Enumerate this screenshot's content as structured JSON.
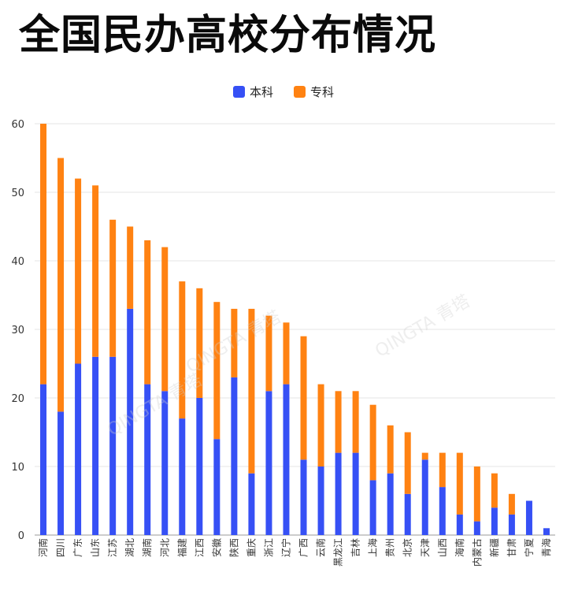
{
  "title": "全国民办高校分布情况",
  "watermark": "QINGTA 青塔",
  "colors": {
    "benke": "#3650f5",
    "zhuanke": "#ff8212",
    "grid": "#e6e6e6",
    "axis": "#999999"
  },
  "chart_data": {
    "type": "bar",
    "stacked": true,
    "title": "全国民办高校分布情况",
    "categories": [
      "河南",
      "四川",
      "广东",
      "山东",
      "江苏",
      "湖北",
      "湖南",
      "河北",
      "福建",
      "江西",
      "安徽",
      "陕西",
      "重庆",
      "浙江",
      "辽宁",
      "广西",
      "云南",
      "黑龙江",
      "吉林",
      "上海",
      "贵州",
      "北京",
      "天津",
      "山西",
      "海南",
      "内蒙古",
      "新疆",
      "甘肃",
      "宁夏",
      "青海"
    ],
    "series": [
      {
        "name": "本科",
        "color": "#3650f5",
        "values": [
          22,
          18,
          25,
          26,
          26,
          33,
          22,
          21,
          17,
          20,
          14,
          23,
          9,
          21,
          22,
          11,
          10,
          12,
          12,
          8,
          9,
          6,
          11,
          7,
          3,
          2,
          4,
          3,
          5,
          1
        ]
      },
      {
        "name": "专科",
        "color": "#ff8212",
        "values": [
          38,
          37,
          27,
          25,
          20,
          12,
          21,
          21,
          20,
          16,
          20,
          10,
          24,
          11,
          9,
          18,
          12,
          9,
          9,
          11,
          7,
          9,
          1,
          5,
          9,
          8,
          5,
          3,
          0,
          0
        ]
      }
    ],
    "ylim": [
      0,
      60
    ],
    "yticks": [
      0,
      10,
      20,
      30,
      40,
      50,
      60
    ],
    "grid": true,
    "legend": "top-center",
    "xlabel": "",
    "ylabel": ""
  }
}
